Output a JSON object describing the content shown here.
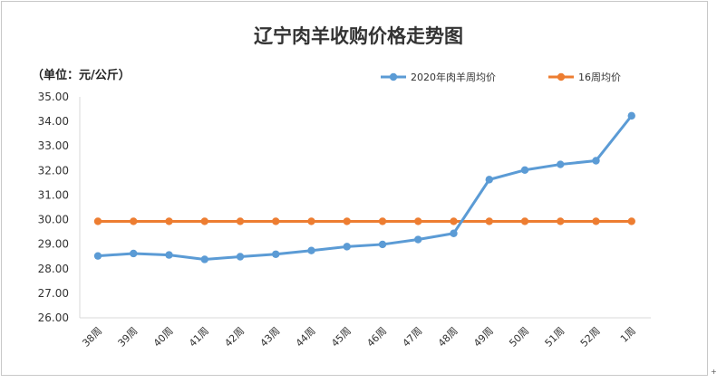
{
  "chart_data": {
    "type": "line",
    "title": "辽宁肉羊收购价格走势图",
    "unit_label": "（单位：元/公斤）",
    "categories": [
      "38周",
      "39周",
      "40周",
      "41周",
      "42周",
      "43周",
      "44周",
      "45周",
      "46周",
      "47周",
      "48周",
      "49周",
      "50周",
      "51周",
      "52周",
      "1周"
    ],
    "y_ticks": [
      "35.00",
      "34.00",
      "33.00",
      "32.00",
      "31.00",
      "30.00",
      "29.00",
      "28.00",
      "27.00",
      "26.00"
    ],
    "ylim": [
      26,
      35
    ],
    "grid": false,
    "legend_position": "top-right",
    "series": [
      {
        "name": "2020年肉羊周均价",
        "color": "#5b9bd5",
        "values": [
          28.52,
          28.62,
          28.56,
          28.38,
          28.49,
          28.59,
          28.74,
          28.9,
          28.99,
          29.19,
          29.44,
          31.63,
          32.02,
          32.25,
          32.4,
          34.23
        ]
      },
      {
        "name": "16周均价",
        "color": "#ed7d31",
        "values": [
          29.93,
          29.93,
          29.93,
          29.93,
          29.93,
          29.93,
          29.93,
          29.93,
          29.93,
          29.93,
          29.93,
          29.93,
          29.93,
          29.93,
          29.93,
          29.93
        ]
      }
    ]
  }
}
